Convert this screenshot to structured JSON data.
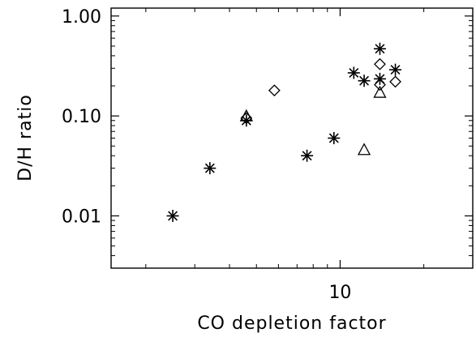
{
  "chart_data": {
    "type": "scatter",
    "title": "",
    "xlabel": "CO depletion factor",
    "ylabel": "D/H ratio",
    "x_scale": "log",
    "y_scale": "log",
    "xlim": [
      1.5,
      30
    ],
    "ylim": [
      0.003,
      1.2
    ],
    "grid": false,
    "x_ticks": [
      {
        "value": 10,
        "label": "10"
      }
    ],
    "y_ticks": [
      {
        "value": 0.01,
        "label": "0.01"
      },
      {
        "value": 0.1,
        "label": "0.10"
      },
      {
        "value": 1.0,
        "label": "1.00"
      }
    ],
    "series": [
      {
        "marker": "asterisk",
        "points": [
          {
            "x": 2.5,
            "y": 0.01
          },
          {
            "x": 3.4,
            "y": 0.03
          },
          {
            "x": 4.6,
            "y": 0.09
          },
          {
            "x": 7.6,
            "y": 0.04
          },
          {
            "x": 9.5,
            "y": 0.06
          },
          {
            "x": 11.2,
            "y": 0.27
          },
          {
            "x": 12.2,
            "y": 0.225
          },
          {
            "x": 13.9,
            "y": 0.47
          },
          {
            "x": 13.9,
            "y": 0.235
          },
          {
            "x": 15.8,
            "y": 0.29
          }
        ]
      },
      {
        "marker": "diamond",
        "points": [
          {
            "x": 4.6,
            "y": 0.095
          },
          {
            "x": 5.8,
            "y": 0.18
          },
          {
            "x": 13.9,
            "y": 0.33
          },
          {
            "x": 13.9,
            "y": 0.205
          },
          {
            "x": 15.8,
            "y": 0.22
          }
        ]
      },
      {
        "marker": "triangle",
        "points": [
          {
            "x": 4.6,
            "y": 0.1
          },
          {
            "x": 12.2,
            "y": 0.046
          },
          {
            "x": 13.9,
            "y": 0.172
          }
        ]
      }
    ]
  }
}
